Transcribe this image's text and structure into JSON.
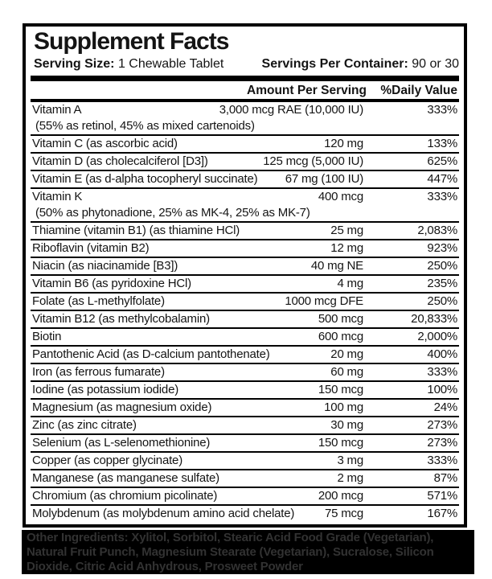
{
  "title": "Supplement Facts",
  "serving": {
    "size_label": "Serving Size:",
    "size_value": "1 Chewable Tablet",
    "per_container_label": "Servings Per Container:",
    "per_container_value": "90 or 30"
  },
  "columns": {
    "amount": "Amount Per Serving",
    "daily_value": "%Daily Value"
  },
  "rows": [
    {
      "name": "Vitamin A",
      "amount": "3,000 mcg RAE (10,000 IU)",
      "dv": "333%",
      "note": "(55% as retinol, 45% as mixed cartenoids)"
    },
    {
      "name": "Vitamin C (as ascorbic acid)",
      "amount": "120 mg",
      "dv": "133%",
      "note": ""
    },
    {
      "name": "Vitamin D (as cholecalciferol [D3])",
      "amount": "125 mcg (5,000 IU)",
      "dv": "625%",
      "note": ""
    },
    {
      "name": "Vitamin E (as d-alpha tocopheryl succinate)",
      "amount": "67 mg (100 IU)",
      "dv": "447%",
      "note": ""
    },
    {
      "name": "Vitamin K",
      "amount": "400 mcg",
      "dv": "333%",
      "note": "(50% as phytonadione, 25% as MK-4, 25% as MK-7)"
    },
    {
      "name": "Thiamine (vitamin B1) (as thiamine HCl)",
      "amount": "25 mg",
      "dv": "2,083%",
      "note": ""
    },
    {
      "name": "Riboflavin (vitamin B2)",
      "amount": "12 mg",
      "dv": "923%",
      "note": ""
    },
    {
      "name": "Niacin (as niacinamide [B3])",
      "amount": "40 mg NE",
      "dv": "250%",
      "note": ""
    },
    {
      "name": "Vitamin B6 (as pyridoxine HCl)",
      "amount": "4 mg",
      "dv": "235%",
      "note": ""
    },
    {
      "name": "Folate (as L-methylfolate)",
      "amount": "1000 mcg DFE",
      "dv": "250%",
      "note": ""
    },
    {
      "name": "Vitamin B12 (as methylcobalamin)",
      "amount": "500 mcg",
      "dv": "20,833%",
      "note": ""
    },
    {
      "name": "Biotin",
      "amount": "600 mcg",
      "dv": "2,000%",
      "note": ""
    },
    {
      "name": "Pantothenic Acid (as D-calcium pantothenate)",
      "amount": "20 mg",
      "dv": "400%",
      "note": ""
    },
    {
      "name": "Iron (as ferrous fumarate)",
      "amount": "60 mg",
      "dv": "333%",
      "note": ""
    },
    {
      "name": "Iodine (as potassium iodide)",
      "amount": "150 mcg",
      "dv": "100%",
      "note": ""
    },
    {
      "name": "Magnesium (as magnesium oxide)",
      "amount": "100 mg",
      "dv": "24%",
      "note": ""
    },
    {
      "name": "Zinc (as zinc citrate)",
      "amount": "30 mg",
      "dv": "273%",
      "note": ""
    },
    {
      "name": "Selenium (as L-selenomethionine)",
      "amount": "150 mcg",
      "dv": "273%",
      "note": ""
    },
    {
      "name": "Copper (as copper glycinate)",
      "amount": "3 mg",
      "dv": "333%",
      "note": ""
    },
    {
      "name": "Manganese (as manganese sulfate)",
      "amount": "2 mg",
      "dv": "87%",
      "note": ""
    },
    {
      "name": "Chromium (as chromium picolinate)",
      "amount": "200 mcg",
      "dv": "571%",
      "note": ""
    },
    {
      "name": "Molybdenum (as molybdenum amino acid chelate)",
      "amount": "75 mcg",
      "dv": "167%",
      "note": ""
    }
  ],
  "footer": {
    "label": "Other Ingredients:",
    "text": "Xylitol, Sorbitol, Stearic Acid Food Grade (Vegetarian), Natural Fruit Punch, Magnesium Stearate (Vegetarian), Sucralose, Silicon Dioxide, Citric Acid Anhydrous, Prosweet Powder"
  },
  "colors": {
    "text": "#141414",
    "border": "#000000",
    "footer_background": "#000000",
    "footer_text": "#323232"
  }
}
